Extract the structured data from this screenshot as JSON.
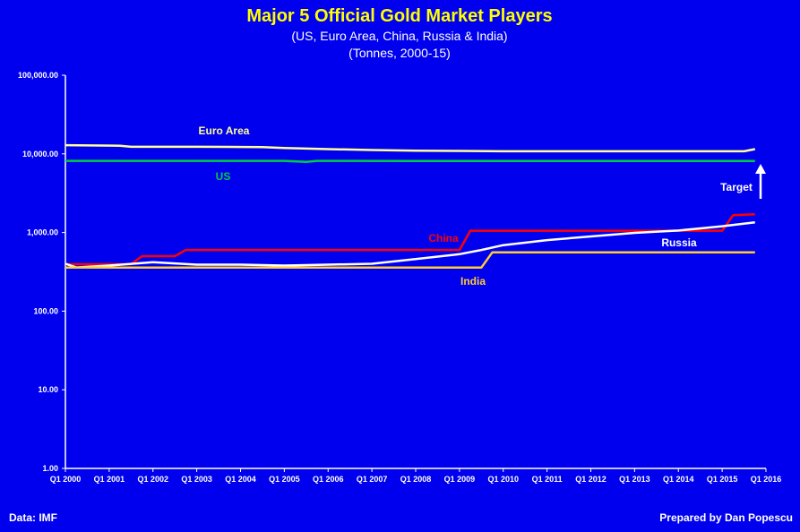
{
  "colors": {
    "background": "#0000ee",
    "axis": "#ffffff",
    "title": "#ffff00"
  },
  "chart_data": {
    "type": "line",
    "title": "Major 5 Official Gold Market Players",
    "subtitle_line1": "(US, Euro Area, China, Russia & India)",
    "subtitle_line2": "(Tonnes, 2000-15)",
    "y_scale": "log",
    "ylim": [
      1,
      100000
    ],
    "y_ticks": [
      "1.00",
      "10.00",
      "100.00",
      "1,000.00",
      "10,000.00",
      "100,000.00"
    ],
    "y_tick_values": [
      1,
      10,
      100,
      1000,
      10000,
      100000
    ],
    "xlim": [
      2000,
      2016
    ],
    "x_ticks": [
      "Q1 2000",
      "Q1 2001",
      "Q1 2002",
      "Q1 2003",
      "Q1 2004",
      "Q1 2005",
      "Q1 2006",
      "Q1 2007",
      "Q1 2008",
      "Q1 2009",
      "Q1 2010",
      "Q1 2011",
      "Q1 2012",
      "Q1 2013",
      "Q1 2014",
      "Q1 2015",
      "Q1 2016"
    ],
    "x_tick_values": [
      2000,
      2001,
      2002,
      2003,
      2004,
      2005,
      2006,
      2007,
      2008,
      2009,
      2010,
      2011,
      2012,
      2013,
      2014,
      2015,
      2016
    ],
    "grid": false,
    "series": [
      {
        "name": "Euro Area",
        "color": "#ffff99",
        "x": [
          2000,
          2001.25,
          2001.5,
          2003,
          2004.5,
          2005,
          2006,
          2007,
          2008,
          2009,
          2010,
          2011,
          2012,
          2013,
          2014,
          2015,
          2015.5,
          2015.75
        ],
        "y": [
          12900,
          12700,
          12300,
          12300,
          12200,
          11900,
          11500,
          11200,
          11000,
          10900,
          10800,
          10800,
          10800,
          10800,
          10800,
          10800,
          10800,
          11500
        ]
      },
      {
        "name": "US",
        "color": "#00cc44",
        "x": [
          2000,
          2004,
          2005,
          2005.5,
          2005.75,
          2006,
          2006.25,
          2008,
          2012,
          2015.75
        ],
        "y": [
          8140,
          8140,
          8140,
          7900,
          8140,
          8140,
          8140,
          8134,
          8134,
          8133
        ]
      },
      {
        "name": "China",
        "color": "#ff0000",
        "x": [
          2000,
          2001.5,
          2001.75,
          2002.5,
          2002.75,
          2009,
          2009.25,
          2015,
          2015.25,
          2015.75
        ],
        "y": [
          395,
          395,
          500,
          500,
          600,
          600,
          1054,
          1054,
          1658,
          1708
        ]
      },
      {
        "name": "Russia",
        "color": "#ffffff",
        "x": [
          2000,
          2000.25,
          2001,
          2002,
          2003,
          2004,
          2005,
          2006,
          2007,
          2008,
          2009,
          2009.5,
          2010,
          2011,
          2012,
          2013,
          2014,
          2015,
          2015.75
        ],
        "y": [
          400,
          360,
          380,
          420,
          390,
          390,
          380,
          390,
          400,
          460,
          530,
          600,
          690,
          800,
          890,
          990,
          1060,
          1200,
          1350
        ]
      },
      {
        "name": "India",
        "color": "#ffcc33",
        "x": [
          2000,
          2009.5,
          2009.75,
          2015.75
        ],
        "y": [
          358,
          358,
          558,
          558
        ]
      }
    ],
    "annotations": [
      {
        "text": "Target",
        "color": "#ffffff"
      }
    ],
    "source_left": "Data: IMF",
    "source_right": "Prepared by Dan Popescu"
  }
}
